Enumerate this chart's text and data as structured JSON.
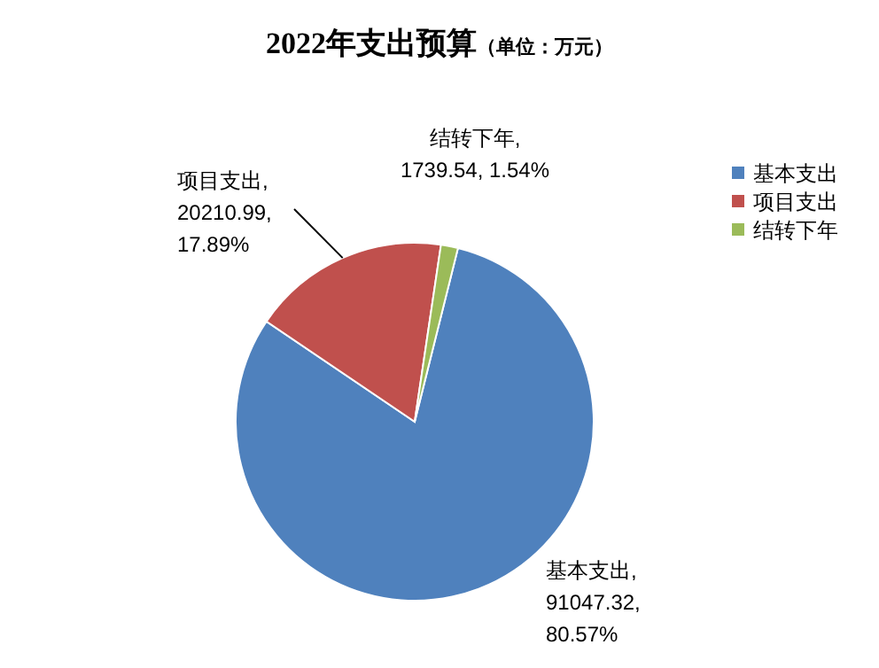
{
  "chart_data": {
    "type": "pie",
    "title": "2022年支出预算（单位：万元）",
    "categories": [
      "基本支出",
      "项目支出",
      "结转下年"
    ],
    "values": [
      91047.32,
      20210.99,
      1739.54
    ],
    "colors": [
      "#4f81bd",
      "#c0504d",
      "#9bbb59"
    ],
    "data_labels": true,
    "value_labels": [
      "基本支出,\n91047.32,\n80.57%",
      "项目支出,\n20210.99,\n17.89%",
      "结转下年,\n1739.54, 1.54%"
    ],
    "legend": "right"
  }
}
